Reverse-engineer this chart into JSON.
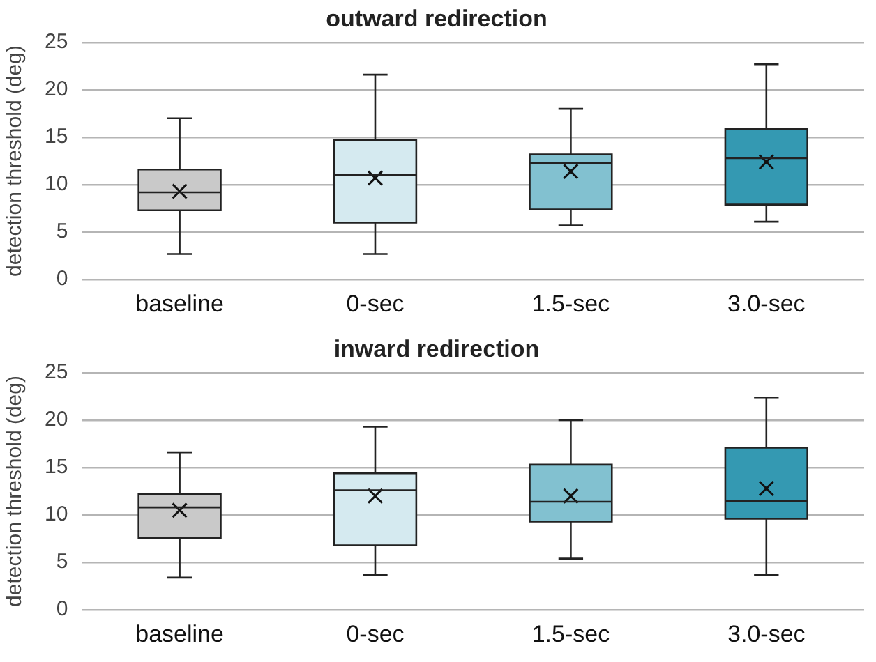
{
  "chart_data": [
    {
      "type": "box",
      "title": "outward redirection",
      "ylabel": "detection threshold (deg)",
      "categories": [
        "baseline",
        "0-sec",
        "1.5-sec",
        "3.0-sec"
      ],
      "colors": [
        "#c9c9c9",
        "#d5eaf0",
        "#82c1d0",
        "#3499b2"
      ],
      "boxes": [
        {
          "low": 2.7,
          "q1": 7.3,
          "median": 9.2,
          "q3": 11.6,
          "high": 17.0,
          "mean": 9.3
        },
        {
          "low": 2.7,
          "q1": 6.0,
          "median": 11.0,
          "q3": 14.7,
          "high": 21.6,
          "mean": 10.7
        },
        {
          "low": 5.7,
          "q1": 7.4,
          "median": 12.3,
          "q3": 13.2,
          "high": 18.0,
          "mean": 11.4
        },
        {
          "low": 6.1,
          "q1": 7.9,
          "median": 12.8,
          "q3": 15.9,
          "high": 22.7,
          "mean": 12.4
        }
      ],
      "ylim": [
        0,
        25
      ],
      "yticks": [
        0,
        5,
        10,
        15,
        20,
        25
      ],
      "grid": "y",
      "marker": "cross"
    },
    {
      "type": "box",
      "title": "inward redirection",
      "ylabel": "detection threshold (deg)",
      "categories": [
        "baseline",
        "0-sec",
        "1.5-sec",
        "3.0-sec"
      ],
      "colors": [
        "#c9c9c9",
        "#d5eaf0",
        "#82c1d0",
        "#3499b2"
      ],
      "boxes": [
        {
          "low": 3.4,
          "q1": 7.6,
          "median": 10.8,
          "q3": 12.2,
          "high": 16.6,
          "mean": 10.5
        },
        {
          "low": 3.7,
          "q1": 6.8,
          "median": 12.6,
          "q3": 14.4,
          "high": 19.3,
          "mean": 12.0
        },
        {
          "low": 5.4,
          "q1": 9.3,
          "median": 11.4,
          "q3": 15.3,
          "high": 20.0,
          "mean": 12.0
        },
        {
          "low": 3.7,
          "q1": 9.6,
          "median": 11.5,
          "q3": 17.1,
          "high": 22.4,
          "mean": 12.8
        }
      ],
      "ylim": [
        0,
        25
      ],
      "yticks": [
        0,
        5,
        10,
        15,
        20,
        25
      ],
      "grid": "y",
      "marker": "cross"
    }
  ]
}
